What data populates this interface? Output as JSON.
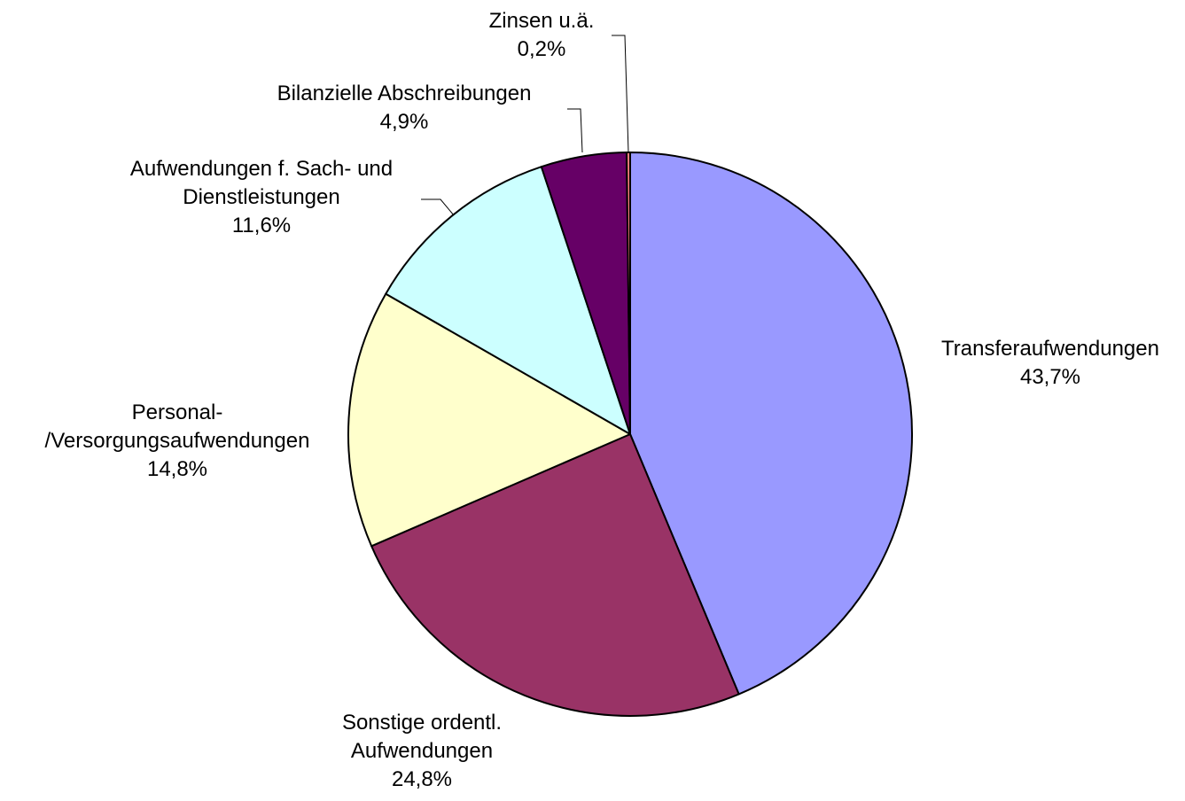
{
  "chart_data": {
    "type": "pie",
    "categories": [
      "Transferaufwendungen",
      "Sonstige ordentl.\nAufwendungen",
      "Personal-\n/Versorgungsaufwendungen",
      "Aufwendungen f. Sach- und\nDienstleistungen",
      "Bilanzielle Abschreibungen",
      "Zinsen u.ä."
    ],
    "values": [
      43.7,
      24.8,
      14.8,
      11.6,
      4.9,
      0.2
    ],
    "value_labels": [
      "43,7%",
      "24,8%",
      "14,8%",
      "11,6%",
      "4,9%",
      "0,2%"
    ],
    "colors": [
      "#9999ff",
      "#993366",
      "#ffffcc",
      "#ccffff",
      "#660066",
      "#ff8080"
    ]
  }
}
